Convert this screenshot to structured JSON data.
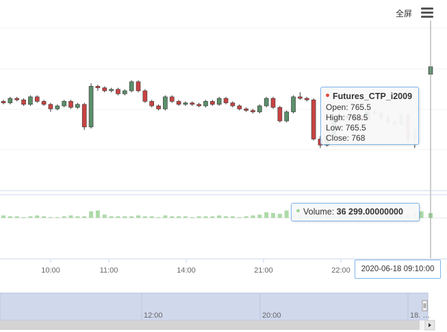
{
  "toolbar": {
    "fullscreen_label": "全屏",
    "menu_icon": "hamburger-menu-icon"
  },
  "colors": {
    "up": "#5b8f6a",
    "down": "#c94343",
    "volume": "#9fd49a",
    "accent": "#7cb5ec",
    "navigator": "#d0d8ec"
  },
  "chart_data": {
    "type": "candlestick",
    "series": [
      {
        "name": "Futures_CTP_i2009",
        "type": "ohlc"
      },
      {
        "name": "Volume",
        "type": "column"
      }
    ],
    "x_ticks": [
      "10:00",
      "11:00",
      "14:00",
      "21:00",
      "22:00"
    ],
    "navigator_ticks": [
      "12:00",
      "20:00",
      "18. …"
    ],
    "candles": [
      [
        756.5,
        757.0,
        755.5,
        756.0
      ],
      [
        756.0,
        758.0,
        755.5,
        757.5
      ],
      [
        757.5,
        758.0,
        756.5,
        757.0
      ],
      [
        757.0,
        757.5,
        755.0,
        755.5
      ],
      [
        755.5,
        758.5,
        755.0,
        758.0
      ],
      [
        758.0,
        758.5,
        756.0,
        756.5
      ],
      [
        756.5,
        757.0,
        755.0,
        755.5
      ],
      [
        755.5,
        756.0,
        753.0,
        754.0
      ],
      [
        754.0,
        755.5,
        753.5,
        755.0
      ],
      [
        755.0,
        757.0,
        754.5,
        756.5
      ],
      [
        756.5,
        757.0,
        754.0,
        754.5
      ],
      [
        754.5,
        756.0,
        754.0,
        755.5
      ],
      [
        755.5,
        756.0,
        747.0,
        748.0
      ],
      [
        748.0,
        762.5,
        747.5,
        761.5
      ],
      [
        761.5,
        762.0,
        760.0,
        761.0
      ],
      [
        761.0,
        761.5,
        759.5,
        760.0
      ],
      [
        760.0,
        761.0,
        759.5,
        760.5
      ],
      [
        760.5,
        761.0,
        758.5,
        759.0
      ],
      [
        759.0,
        760.5,
        758.5,
        760.0
      ],
      [
        760.0,
        763.5,
        759.5,
        763.0
      ],
      [
        763.0,
        763.5,
        759.5,
        760.0
      ],
      [
        760.0,
        760.5,
        756.0,
        756.5
      ],
      [
        756.5,
        757.0,
        754.5,
        755.0
      ],
      [
        755.0,
        755.5,
        753.5,
        754.0
      ],
      [
        754.0,
        758.5,
        753.5,
        758.0
      ],
      [
        758.0,
        758.5,
        756.0,
        756.5
      ],
      [
        756.5,
        757.0,
        755.0,
        755.5
      ],
      [
        755.5,
        756.5,
        755.0,
        756.0
      ],
      [
        756.0,
        756.5,
        755.0,
        755.5
      ],
      [
        755.5,
        756.0,
        754.5,
        755.0
      ],
      [
        755.0,
        757.0,
        754.5,
        756.5
      ],
      [
        756.5,
        757.0,
        755.0,
        755.5
      ],
      [
        755.5,
        758.0,
        755.0,
        757.5
      ],
      [
        757.5,
        758.0,
        755.5,
        756.0
      ],
      [
        756.0,
        756.5,
        754.5,
        755.0
      ],
      [
        755.0,
        755.5,
        753.5,
        754.0
      ],
      [
        754.0,
        754.5,
        753.0,
        753.5
      ],
      [
        753.5,
        754.0,
        752.5,
        753.0
      ],
      [
        753.0,
        755.5,
        752.5,
        755.0
      ],
      [
        755.0,
        758.0,
        754.5,
        757.5
      ],
      [
        757.5,
        758.0,
        754.0,
        754.5
      ],
      [
        754.5,
        755.0,
        749.5,
        750.0
      ],
      [
        750.0,
        753.5,
        749.5,
        753.0
      ],
      [
        753.0,
        758.5,
        752.5,
        758.0
      ],
      [
        758.0,
        759.5,
        757.0,
        757.5
      ],
      [
        757.5,
        758.0,
        756.5,
        757.0
      ],
      [
        757.0,
        757.5,
        743.5,
        744.0
      ],
      [
        744.0,
        745.0,
        741.0,
        742.0
      ],
      [
        742.0,
        745.5,
        741.5,
        745.0
      ],
      [
        745.0,
        751.0,
        744.5,
        750.5
      ],
      [
        750.5,
        752.0,
        750.0,
        751.5
      ],
      [
        751.5,
        752.0,
        750.5,
        751.0
      ],
      [
        751.0,
        752.0,
        750.5,
        751.5
      ],
      [
        751.5,
        752.0,
        750.0,
        750.5
      ],
      [
        750.5,
        753.5,
        750.0,
        753.0
      ],
      [
        753.0,
        753.5,
        752.0,
        752.5
      ],
      [
        752.5,
        753.0,
        750.5,
        751.0
      ],
      [
        751.0,
        752.0,
        749.0,
        749.5
      ],
      [
        749.5,
        750.0,
        748.5,
        749.0
      ],
      [
        749.0,
        752.5,
        748.5,
        752.0
      ],
      [
        752.0,
        752.5,
        743.0,
        744.0
      ],
      [
        744.0,
        747.5,
        741.0,
        747.0
      ],
      [
        765.5,
        768.5,
        765.5,
        768.0
      ]
    ],
    "volumes": [
      3,
      2,
      2,
      1,
      2,
      3,
      2,
      1,
      1,
      2,
      3,
      2,
      2,
      8,
      9,
      4,
      2,
      2,
      2,
      2,
      3,
      2,
      2,
      1,
      3,
      2,
      2,
      2,
      1,
      2,
      2,
      2,
      3,
      2,
      2,
      1,
      2,
      3,
      4,
      7,
      6,
      5,
      9,
      6,
      4,
      3,
      8,
      5,
      6,
      4,
      3,
      3,
      3,
      2,
      3,
      2,
      3,
      4,
      5,
      3,
      4,
      6,
      8
    ],
    "tooltip": {
      "series": "Futures_CTP_i2009",
      "open_label": "Open: ",
      "open": "765.5",
      "high_label": "High: ",
      "high": "768.5",
      "low_label": "Low: ",
      "low": "765.5",
      "close_label": "Close: ",
      "close": "768",
      "volume_label": "Volume: ",
      "volume": "36 299.00000000",
      "date": "2020-06-18 09:10:00"
    }
  }
}
